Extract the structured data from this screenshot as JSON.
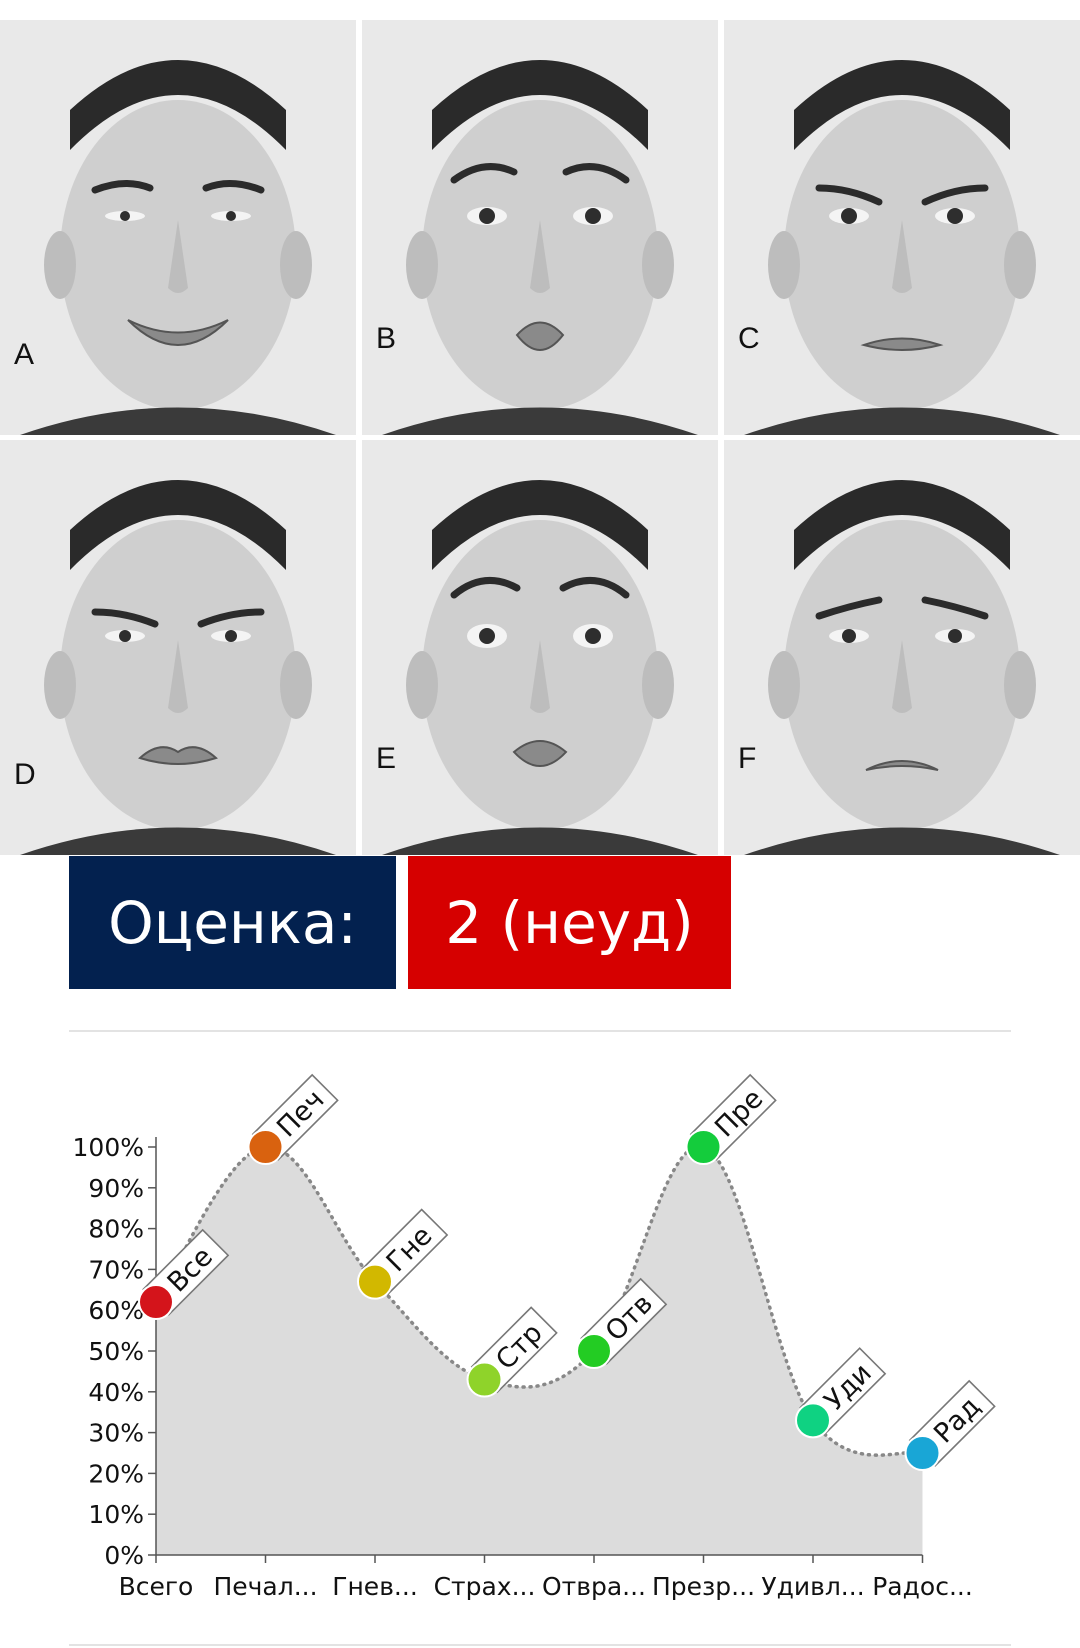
{
  "photos": [
    {
      "letter": "A",
      "expression": "happiness"
    },
    {
      "letter": "B",
      "expression": "surprise"
    },
    {
      "letter": "C",
      "expression": "anger"
    },
    {
      "letter": "D",
      "expression": "disgust"
    },
    {
      "letter": "E",
      "expression": "fear"
    },
    {
      "letter": "F",
      "expression": "sadness"
    }
  ],
  "grade": {
    "label": "Оценка:",
    "value": "2 (неуд)",
    "label_color": "#03214f",
    "value_color": "#d60000"
  },
  "chart_data": {
    "type": "area",
    "categories": [
      "Всего",
      "Печал...",
      "Гнев...",
      "Страх...",
      "Отвра...",
      "Презр...",
      "Удивл...",
      "Радос..."
    ],
    "tags": [
      "Все",
      "Печ",
      "Гне",
      "Стр",
      "Отв",
      "Пре",
      "Уди",
      "Рад"
    ],
    "values": [
      62,
      100,
      67,
      43,
      50,
      100,
      33,
      25
    ],
    "marker_colors": [
      "#d4141b",
      "#d9620f",
      "#d2b800",
      "#8fd32a",
      "#23cc23",
      "#14cc3c",
      "#0fd282",
      "#19a6d6"
    ],
    "y_ticks": [
      "0%",
      "10%",
      "20%",
      "30%",
      "40%",
      "50%",
      "60%",
      "70%",
      "80%",
      "90%",
      "100%"
    ],
    "ylim": [
      0,
      100
    ],
    "fill_color": "#dcdcdc",
    "line_color": "#888888",
    "grid": false
  }
}
